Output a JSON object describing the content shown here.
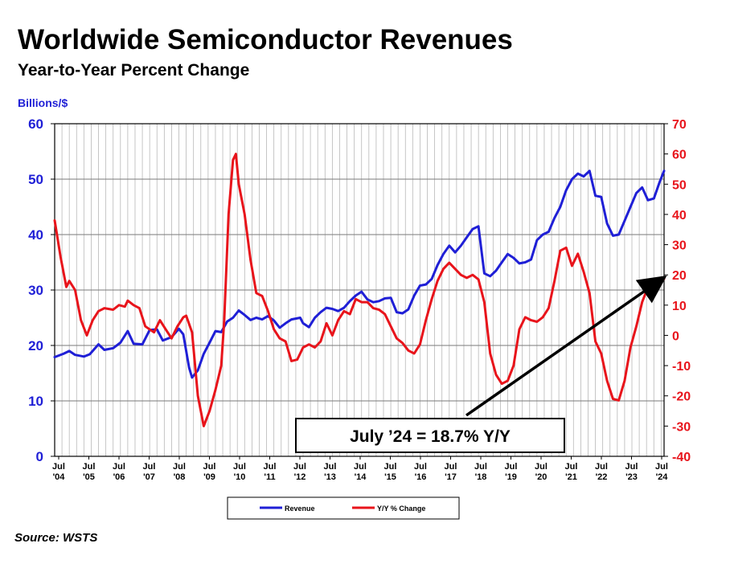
{
  "chart_data": {
    "type": "line",
    "title": "Worldwide Semiconductor Revenues",
    "subtitle": "Year-to-Year Percent Change",
    "ylabel_left": "Billions/$",
    "source": "Source: WSTS",
    "annotation": "July ’24 = 18.7% Y/Y",
    "left_axis": {
      "ylim": [
        0,
        60
      ],
      "ticks": [
        "0",
        "10",
        "20",
        "30",
        "40",
        "50",
        "60"
      ],
      "color": "#1f1fd6"
    },
    "right_axis": {
      "ylim": [
        -40,
        70
      ],
      "ticks": [
        "-40",
        "-30",
        "-20",
        "-10",
        "0",
        "10",
        "20",
        "30",
        "40",
        "50",
        "60",
        "70"
      ],
      "color": "#e8141b"
    },
    "x_range": [
      2004.5,
      2024.5
    ],
    "x_ticks": [
      {
        "pos": 2004.5,
        "top": "Jul",
        "bottom": "'04"
      },
      {
        "pos": 2005.5,
        "top": "Jul",
        "bottom": "'05"
      },
      {
        "pos": 2006.5,
        "top": "Jul",
        "bottom": "'06"
      },
      {
        "pos": 2007.5,
        "top": "Jul",
        "bottom": "'07"
      },
      {
        "pos": 2008.5,
        "top": "Jul",
        "bottom": "'08"
      },
      {
        "pos": 2009.5,
        "top": "Jul",
        "bottom": "'09"
      },
      {
        "pos": 2010.5,
        "top": "Jul",
        "bottom": "'10"
      },
      {
        "pos": 2011.5,
        "top": "Jul",
        "bottom": "'11"
      },
      {
        "pos": 2012.5,
        "top": "Jul",
        "bottom": "'12"
      },
      {
        "pos": 2013.5,
        "top": "Jul",
        "bottom": "'13"
      },
      {
        "pos": 2014.5,
        "top": "Jul",
        "bottom": "'14"
      },
      {
        "pos": 2015.5,
        "top": "Jul",
        "bottom": "'15"
      },
      {
        "pos": 2016.5,
        "top": "Jul",
        "bottom": "'16"
      },
      {
        "pos": 2017.5,
        "top": "Jul",
        "bottom": "'17"
      },
      {
        "pos": 2018.5,
        "top": "Jul",
        "bottom": "'18"
      },
      {
        "pos": 2019.5,
        "top": "Jul",
        "bottom": "'19"
      },
      {
        "pos": 2020.5,
        "top": "Jul",
        "bottom": "'20"
      },
      {
        "pos": 2021.5,
        "top": "Jul",
        "bottom": "'21"
      },
      {
        "pos": 2022.5,
        "top": "Jul",
        "bottom": "'22"
      },
      {
        "pos": 2023.5,
        "top": "Jul",
        "bottom": "'23"
      },
      {
        "pos": 2024.5,
        "top": "Jul",
        "bottom": "'24"
      }
    ],
    "grid": true,
    "legend": {
      "position": "bottom-center"
    },
    "series": [
      {
        "name": "Revenue",
        "axis": "left",
        "color": "#1f1fd6",
        "points": [
          [
            2004.5,
            17.9
          ],
          [
            2004.8,
            18.5
          ],
          [
            2005.0,
            19.0
          ],
          [
            2005.2,
            18.3
          ],
          [
            2005.5,
            18.0
          ],
          [
            2005.7,
            18.4
          ],
          [
            2006.0,
            20.2
          ],
          [
            2006.2,
            19.2
          ],
          [
            2006.5,
            19.5
          ],
          [
            2006.75,
            20.5
          ],
          [
            2007.0,
            22.6
          ],
          [
            2007.2,
            20.3
          ],
          [
            2007.5,
            20.2
          ],
          [
            2007.75,
            22.8
          ],
          [
            2008.0,
            22.9
          ],
          [
            2008.2,
            20.9
          ],
          [
            2008.5,
            21.5
          ],
          [
            2008.75,
            23.0
          ],
          [
            2008.9,
            22.0
          ],
          [
            2009.1,
            16.0
          ],
          [
            2009.2,
            14.2
          ],
          [
            2009.4,
            15.5
          ],
          [
            2009.6,
            18.5
          ],
          [
            2009.8,
            20.5
          ],
          [
            2010.0,
            22.6
          ],
          [
            2010.2,
            22.4
          ],
          [
            2010.4,
            24.3
          ],
          [
            2010.6,
            25.0
          ],
          [
            2010.8,
            26.3
          ],
          [
            2011.0,
            25.5
          ],
          [
            2011.2,
            24.6
          ],
          [
            2011.4,
            25.0
          ],
          [
            2011.6,
            24.7
          ],
          [
            2011.8,
            25.3
          ],
          [
            2012.0,
            24.5
          ],
          [
            2012.2,
            23.2
          ],
          [
            2012.4,
            24.0
          ],
          [
            2012.6,
            24.7
          ],
          [
            2012.9,
            25.0
          ],
          [
            2013.0,
            24.0
          ],
          [
            2013.2,
            23.3
          ],
          [
            2013.4,
            25.0
          ],
          [
            2013.6,
            26.0
          ],
          [
            2013.8,
            26.8
          ],
          [
            2014.0,
            26.6
          ],
          [
            2014.2,
            26.2
          ],
          [
            2014.4,
            26.8
          ],
          [
            2014.6,
            28.0
          ],
          [
            2014.8,
            29.0
          ],
          [
            2015.0,
            29.7
          ],
          [
            2015.2,
            28.3
          ],
          [
            2015.4,
            27.8
          ],
          [
            2015.6,
            28.0
          ],
          [
            2015.8,
            28.5
          ],
          [
            2016.0,
            28.6
          ],
          [
            2016.2,
            26.0
          ],
          [
            2016.4,
            25.8
          ],
          [
            2016.6,
            26.5
          ],
          [
            2016.8,
            29.0
          ],
          [
            2017.0,
            30.8
          ],
          [
            2017.2,
            31.0
          ],
          [
            2017.4,
            32.0
          ],
          [
            2017.6,
            34.5
          ],
          [
            2017.8,
            36.5
          ],
          [
            2018.0,
            38.0
          ],
          [
            2018.2,
            36.8
          ],
          [
            2018.4,
            38.0
          ],
          [
            2018.6,
            39.5
          ],
          [
            2018.8,
            41.0
          ],
          [
            2019.0,
            41.5
          ],
          [
            2019.2,
            33.0
          ],
          [
            2019.4,
            32.5
          ],
          [
            2019.6,
            33.5
          ],
          [
            2019.8,
            35.0
          ],
          [
            2020.0,
            36.5
          ],
          [
            2020.2,
            35.8
          ],
          [
            2020.4,
            34.8
          ],
          [
            2020.6,
            35.0
          ],
          [
            2020.8,
            35.5
          ],
          [
            2021.0,
            39.0
          ],
          [
            2021.2,
            40.0
          ],
          [
            2021.4,
            40.5
          ],
          [
            2021.6,
            43.0
          ],
          [
            2021.8,
            45.0
          ],
          [
            2022.0,
            48.0
          ],
          [
            2022.2,
            50.0
          ],
          [
            2022.4,
            51.0
          ],
          [
            2022.6,
            50.5
          ],
          [
            2022.8,
            51.5
          ],
          [
            2023.0,
            47.0
          ],
          [
            2023.2,
            46.8
          ],
          [
            2023.4,
            42.0
          ],
          [
            2023.6,
            39.8
          ],
          [
            2023.8,
            40.0
          ],
          [
            2024.0,
            42.5
          ],
          [
            2024.2,
            45.0
          ],
          [
            2024.4,
            47.5
          ],
          [
            2024.6,
            48.5
          ],
          [
            2024.8,
            46.2
          ],
          [
            2025.0,
            46.5
          ],
          [
            2025.2,
            49.5
          ],
          [
            2025.35,
            51.5
          ]
        ]
      },
      {
        "name": "Y/Y % Change",
        "axis": "right",
        "color": "#e8141b",
        "points": [
          [
            2004.5,
            38.0
          ],
          [
            2004.7,
            26.0
          ],
          [
            2004.9,
            16.0
          ],
          [
            2005.0,
            18.0
          ],
          [
            2005.2,
            15.0
          ],
          [
            2005.4,
            5.0
          ],
          [
            2005.6,
            0.0
          ],
          [
            2005.8,
            5.0
          ],
          [
            2006.0,
            8.0
          ],
          [
            2006.2,
            9.0
          ],
          [
            2006.5,
            8.5
          ],
          [
            2006.7,
            10.0
          ],
          [
            2006.9,
            9.5
          ],
          [
            2007.0,
            11.5
          ],
          [
            2007.2,
            10.0
          ],
          [
            2007.4,
            9.0
          ],
          [
            2007.6,
            3.0
          ],
          [
            2007.9,
            1.0
          ],
          [
            2008.1,
            5.0
          ],
          [
            2008.3,
            2.0
          ],
          [
            2008.5,
            -1.0
          ],
          [
            2008.7,
            3.0
          ],
          [
            2008.9,
            6.0
          ],
          [
            2009.0,
            6.5
          ],
          [
            2009.2,
            1.0
          ],
          [
            2009.4,
            -20.0
          ],
          [
            2009.6,
            -30.0
          ],
          [
            2009.8,
            -25.0
          ],
          [
            2010.0,
            -18.0
          ],
          [
            2010.2,
            -10.0
          ],
          [
            2010.3,
            5.0
          ],
          [
            2010.45,
            40.0
          ],
          [
            2010.6,
            58.0
          ],
          [
            2010.7,
            60.0
          ],
          [
            2010.8,
            50.0
          ],
          [
            2011.0,
            40.0
          ],
          [
            2011.2,
            25.0
          ],
          [
            2011.4,
            14.0
          ],
          [
            2011.6,
            13.0
          ],
          [
            2011.8,
            8.0
          ],
          [
            2012.0,
            2.0
          ],
          [
            2012.2,
            -1.0
          ],
          [
            2012.4,
            -2.0
          ],
          [
            2012.6,
            -8.5
          ],
          [
            2012.8,
            -8.0
          ],
          [
            2013.0,
            -4.0
          ],
          [
            2013.2,
            -3.0
          ],
          [
            2013.4,
            -4.0
          ],
          [
            2013.6,
            -2.0
          ],
          [
            2013.8,
            4.0
          ],
          [
            2014.0,
            0.0
          ],
          [
            2014.2,
            5.0
          ],
          [
            2014.4,
            8.0
          ],
          [
            2014.6,
            7.0
          ],
          [
            2014.8,
            12.0
          ],
          [
            2015.0,
            11.0
          ],
          [
            2015.2,
            11.0
          ],
          [
            2015.4,
            9.0
          ],
          [
            2015.6,
            8.5
          ],
          [
            2015.8,
            7.0
          ],
          [
            2016.0,
            3.0
          ],
          [
            2016.2,
            -1.0
          ],
          [
            2016.4,
            -2.5
          ],
          [
            2016.6,
            -5.0
          ],
          [
            2016.8,
            -6.0
          ],
          [
            2017.0,
            -3.0
          ],
          [
            2017.2,
            5.0
          ],
          [
            2017.4,
            12.0
          ],
          [
            2017.6,
            18.0
          ],
          [
            2017.8,
            22.0
          ],
          [
            2018.0,
            24.0
          ],
          [
            2018.2,
            22.0
          ],
          [
            2018.4,
            20.0
          ],
          [
            2018.6,
            19.0
          ],
          [
            2018.8,
            20.0
          ],
          [
            2019.0,
            18.5
          ],
          [
            2019.2,
            11.0
          ],
          [
            2019.4,
            -6.0
          ],
          [
            2019.6,
            -13.0
          ],
          [
            2019.8,
            -16.0
          ],
          [
            2020.0,
            -15.0
          ],
          [
            2020.2,
            -10.0
          ],
          [
            2020.4,
            2.0
          ],
          [
            2020.6,
            6.0
          ],
          [
            2020.8,
            5.0
          ],
          [
            2021.0,
            4.5
          ],
          [
            2021.2,
            6.0
          ],
          [
            2021.4,
            9.0
          ],
          [
            2021.6,
            18.0
          ],
          [
            2021.8,
            28.0
          ],
          [
            2022.0,
            29.0
          ],
          [
            2022.2,
            23.0
          ],
          [
            2022.4,
            27.0
          ],
          [
            2022.6,
            21.0
          ],
          [
            2022.8,
            14.0
          ],
          [
            2023.0,
            -2.0
          ],
          [
            2023.2,
            -6.0
          ],
          [
            2023.4,
            -15.0
          ],
          [
            2023.6,
            -21.0
          ],
          [
            2023.8,
            -21.5
          ],
          [
            2024.0,
            -15.0
          ],
          [
            2024.2,
            -4.0
          ],
          [
            2024.4,
            3.0
          ],
          [
            2024.6,
            11.0
          ],
          [
            2024.8,
            16.0
          ],
          [
            2025.0,
            16.5
          ],
          [
            2025.2,
            18.0
          ],
          [
            2025.35,
            18.7
          ]
        ]
      }
    ],
    "legend_labels": {
      "revenue": "Revenue",
      "yoy": "Y/Y % Change"
    }
  }
}
